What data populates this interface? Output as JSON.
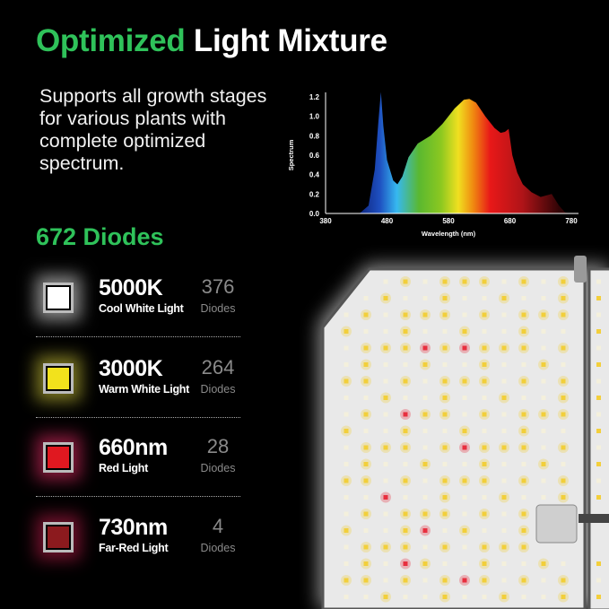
{
  "title": {
    "highlight": "Optimized",
    "rest": "Light Mixture"
  },
  "subtitle": "Supports all growth stages for various plants with complete optimized spectrum.",
  "diodes_total": "672 Diodes",
  "diode_types": [
    {
      "value": "5000K",
      "label": "Cool White Light",
      "count": "376",
      "unit": "Diodes",
      "color": "#ffffff",
      "glow": "#ffffff"
    },
    {
      "value": "3000K",
      "label": "Warm White Light",
      "count": "264",
      "unit": "Diodes",
      "color": "#f2e21c",
      "glow": "#e8e040"
    },
    {
      "value": "660nm",
      "label": "Red Light",
      "count": "28",
      "unit": "Diodes",
      "color": "#e01820",
      "glow": "#ff3070"
    },
    {
      "value": "730nm",
      "label": "Far-Red Light",
      "count": "4",
      "unit": "Diodes",
      "color": "#8c1a1e",
      "glow": "#d02050"
    }
  ],
  "chart_data": {
    "type": "area",
    "xlabel": "Wavelength (nm)",
    "ylabel": "Spectrum",
    "xlim": [
      380,
      780
    ],
    "ylim": [
      0,
      1.2
    ],
    "xticks": [
      "380",
      "480",
      "580",
      "680",
      "780"
    ],
    "yticks": [
      "0.0",
      "0.2",
      "0.4",
      "0.6",
      "0.8",
      "1.0",
      "1.2"
    ],
    "grid": false,
    "x": [
      380,
      435,
      450,
      460,
      466,
      470,
      474,
      480,
      490,
      497,
      505,
      515,
      530,
      551,
      570,
      590,
      605,
      614,
      625,
      640,
      655,
      665,
      672,
      678,
      684,
      692,
      701,
      715,
      730,
      748,
      760,
      770,
      780
    ],
    "y": [
      0,
      0,
      0.08,
      0.45,
      0.95,
      1.25,
      0.9,
      0.55,
      0.34,
      0.3,
      0.38,
      0.58,
      0.72,
      0.8,
      0.92,
      1.08,
      1.17,
      1.18,
      1.14,
      1.0,
      0.88,
      0.83,
      0.84,
      0.87,
      0.6,
      0.42,
      0.3,
      0.22,
      0.17,
      0.2,
      0.08,
      0.01,
      0
    ]
  }
}
